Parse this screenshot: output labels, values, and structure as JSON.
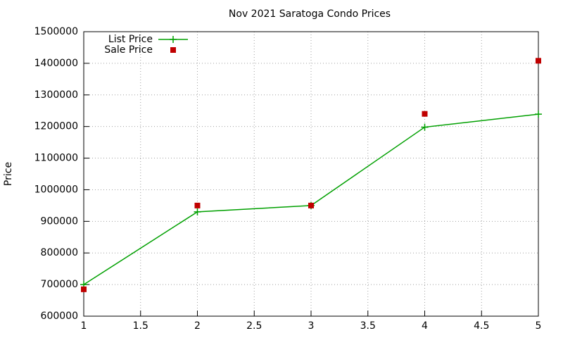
{
  "chart_data": {
    "type": "line",
    "title": "Nov 2021 Saratoga Condo Prices",
    "y_label": "Price",
    "x": [
      1,
      2,
      3,
      4,
      5
    ],
    "series": [
      {
        "name": "List Price",
        "color": "#00a000",
        "style": "linespoints",
        "marker": "plus",
        "values": [
          700000,
          930000,
          950000,
          1198000,
          1239000
        ]
      },
      {
        "name": "Sale Price",
        "color": "#c00000",
        "style": "points",
        "marker": "square",
        "values": [
          685000,
          950000,
          950000,
          1240000,
          1408000
        ]
      }
    ],
    "xlim": [
      1,
      5
    ],
    "xticks": [
      1,
      1.5,
      2,
      2.5,
      3,
      3.5,
      4,
      4.5,
      5
    ],
    "ylim": [
      600000,
      1500000
    ],
    "yticks": [
      600000,
      700000,
      800000,
      900000,
      1000000,
      1100000,
      1200000,
      1300000,
      1400000,
      1500000
    ],
    "grid": true,
    "legend": "top-left"
  }
}
